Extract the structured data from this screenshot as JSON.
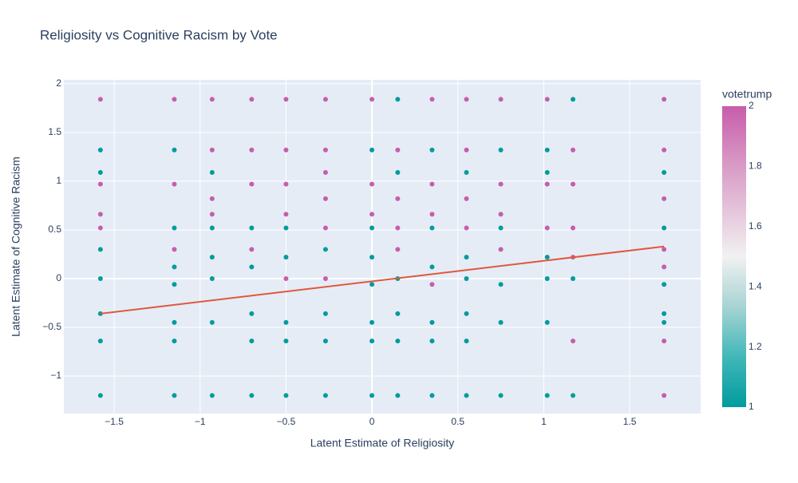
{
  "chart_data": {
    "type": "scatter",
    "title": "Religiosity vs Cognitive Racism by Vote",
    "x_label": "Latent Estimate of Religiosity",
    "y_label": "Latent Estimate of Cognitive Racism",
    "colorbar_title": "votetrump",
    "xlim": [
      -1.793,
      1.913
    ],
    "ylim": [
      -1.385,
      2.04
    ],
    "xticks": [
      {
        "value": -1.5,
        "label": "−1.5"
      },
      {
        "value": -1,
        "label": "−1"
      },
      {
        "value": -0.5,
        "label": "−0.5"
      },
      0,
      0.5,
      1,
      1.5
    ],
    "yticks": [
      {
        "value": -1,
        "label": "−1"
      },
      {
        "value": -0.5,
        "label": "−0.5"
      },
      0,
      0.5,
      1,
      1.5,
      2
    ],
    "clim": [
      1,
      2
    ],
    "cticks": [
      1,
      1.2,
      1.4,
      1.6,
      1.8,
      2
    ],
    "colorscale": [
      "#009b9e",
      "#42b7b9",
      "#a7d3d4",
      "#f1f1f1",
      "#e4c1d9",
      "#d691c1",
      "#c75dab"
    ],
    "grid": true,
    "x": [
      -1.58,
      -1.58,
      -1.58,
      -1.58,
      -1.58,
      -1.58,
      -1.58,
      -1.58,
      -1.58,
      -1.58,
      -1.58,
      -1.15,
      -1.15,
      -1.15,
      -1.15,
      -1.15,
      -1.15,
      -1.15,
      -1.15,
      -1.15,
      -1.15,
      -0.93,
      -0.93,
      -0.93,
      -0.93,
      -0.93,
      -0.93,
      -0.93,
      -0.93,
      -0.93,
      -0.93,
      -0.7,
      -0.7,
      -0.7,
      -0.7,
      -0.7,
      -0.7,
      -0.7,
      -0.7,
      -0.7,
      -0.5,
      -0.5,
      -0.5,
      -0.5,
      -0.5,
      -0.5,
      -0.5,
      -0.5,
      -0.5,
      -0.5,
      -0.27,
      -0.27,
      -0.27,
      -0.27,
      -0.27,
      -0.27,
      -0.27,
      -0.27,
      -0.27,
      -0.27,
      0,
      0,
      0,
      0,
      0,
      0,
      0,
      0,
      0,
      0,
      0.15,
      0.15,
      0.15,
      0.15,
      0.15,
      0.15,
      0.15,
      0.15,
      0.15,
      0.15,
      0.35,
      0.35,
      0.35,
      0.35,
      0.35,
      0.35,
      0.35,
      0.35,
      0.35,
      0.35,
      0.55,
      0.55,
      0.55,
      0.55,
      0.55,
      0.55,
      0.55,
      0.55,
      0.55,
      0.55,
      0.75,
      0.75,
      0.75,
      0.75,
      0.75,
      0.75,
      0.75,
      0.75,
      0.75,
      1.02,
      1.02,
      1.02,
      1.02,
      1.02,
      1.02,
      1.02,
      1.02,
      1.02,
      1.17,
      1.17,
      1.17,
      1.17,
      1.17,
      1.17,
      1.17,
      1.17,
      1.7,
      1.7,
      1.7,
      1.7,
      1.7,
      1.7,
      1.7,
      1.7,
      1.7,
      1.7,
      1.7,
      1.7
    ],
    "y": [
      1.84,
      1.32,
      1.09,
      0.97,
      0.52,
      0.3,
      0,
      -0.36,
      -0.64,
      -1.2,
      0.66,
      1.84,
      1.32,
      0.97,
      0.52,
      0.12,
      -0.06,
      -0.45,
      -0.64,
      -1.2,
      0.3,
      1.84,
      1.32,
      1.09,
      0.82,
      0.52,
      0.22,
      0,
      -0.45,
      -1.2,
      0.66,
      1.84,
      1.32,
      0.97,
      0.52,
      0.3,
      0.12,
      -0.36,
      -0.64,
      -1.2,
      1.84,
      1.32,
      0.97,
      0.66,
      0.52,
      0.22,
      0,
      -0.45,
      -0.64,
      -1.2,
      1.84,
      1.32,
      1.09,
      0.82,
      0.52,
      0.3,
      0,
      -0.36,
      -0.64,
      -1.2,
      1.84,
      1.32,
      0.97,
      0.66,
      0.52,
      0.22,
      -0.06,
      -0.45,
      -0.64,
      -1.2,
      1.84,
      1.32,
      1.09,
      0.82,
      0.52,
      0.3,
      0,
      -0.36,
      -0.64,
      -1.2,
      1.84,
      1.32,
      0.97,
      0.66,
      0.52,
      0.12,
      -0.06,
      -0.45,
      -0.64,
      -1.2,
      1.84,
      1.32,
      1.09,
      0.82,
      0.52,
      0.22,
      0,
      -0.36,
      -0.64,
      -1.2,
      1.84,
      1.32,
      0.97,
      0.66,
      0.52,
      0.3,
      -0.06,
      -0.45,
      -1.2,
      1.84,
      1.32,
      1.09,
      0.97,
      0.52,
      0.22,
      0,
      -0.45,
      -1.2,
      1.84,
      1.32,
      0.97,
      0.52,
      0.22,
      0,
      -0.64,
      -1.2,
      1.84,
      1.32,
      1.09,
      0.82,
      0.52,
      0.3,
      0.12,
      -0.06,
      -0.36,
      -0.45,
      -0.64,
      -1.2
    ],
    "color_values": [
      2,
      1,
      1,
      2,
      2,
      1,
      1,
      1,
      1,
      1,
      2,
      2,
      1,
      2,
      1,
      1,
      1,
      1,
      1,
      1,
      2,
      2,
      2,
      1,
      2,
      1,
      1,
      1,
      1,
      1,
      2,
      2,
      2,
      2,
      1,
      2,
      1,
      1,
      1,
      1,
      2,
      2,
      2,
      2,
      1,
      1,
      2,
      1,
      1,
      1,
      2,
      2,
      2,
      2,
      2,
      1,
      2,
      1,
      1,
      1,
      2,
      1,
      2,
      2,
      1,
      1,
      1,
      1,
      1,
      1,
      1,
      2,
      1,
      2,
      2,
      2,
      1,
      1,
      1,
      1,
      2,
      1,
      2,
      2,
      1,
      1,
      2,
      1,
      1,
      1,
      2,
      2,
      1,
      2,
      2,
      1,
      1,
      1,
      1,
      1,
      2,
      1,
      2,
      2,
      1,
      2,
      1,
      1,
      1,
      2,
      1,
      1,
      2,
      2,
      1,
      1,
      1,
      1,
      1,
      2,
      2,
      2,
      2,
      1,
      2,
      1,
      2,
      2,
      1,
      2,
      1,
      2,
      2,
      1,
      1,
      1,
      2,
      2
    ],
    "trend": {
      "x": [
        -1.58,
        1.7
      ],
      "y": [
        -0.36,
        0.33
      ],
      "color": "#e0583c"
    }
  }
}
